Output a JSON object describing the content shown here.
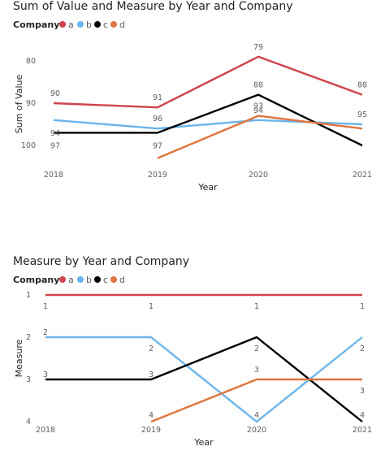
{
  "colors": {
    "a": "#d0424d",
    "b": "#6bb5ec",
    "c": "#000000",
    "d": "#e0743e"
  },
  "chart_data": [
    {
      "type": "line",
      "title": "Sum of Value and Measure by Year and Company",
      "legend_title": "Company",
      "legend_position": "top-left",
      "xlabel": "Year",
      "ylabel": "Sum of Value",
      "y_axis_reversed": true,
      "ylim": [
        75,
        100
      ],
      "yticks": [
        "80",
        "90",
        "100"
      ],
      "categories": [
        "2018",
        "2019",
        "2020",
        "2021"
      ],
      "grid": false,
      "series": [
        {
          "name": "a",
          "values": [
            90,
            91,
            79,
            88
          ],
          "labels": [
            "90",
            "91",
            "79",
            "88"
          ]
        },
        {
          "name": "b",
          "values": [
            94,
            96,
            94,
            95
          ],
          "labels": [
            "94",
            "96",
            "94",
            "95"
          ]
        },
        {
          "name": "c",
          "values": [
            97,
            97,
            88,
            100
          ],
          "labels": [
            "97",
            "97",
            "88",
            ""
          ]
        },
        {
          "name": "d",
          "values": [
            null,
            103,
            93,
            96
          ],
          "labels": [
            "",
            "",
            "93",
            ""
          ]
        }
      ]
    },
    {
      "type": "line",
      "title": "Measure by Year and Company",
      "legend_title": "Company",
      "legend_position": "top-left",
      "xlabel": "Year",
      "ylabel": "Measure",
      "y_axis_reversed": true,
      "ylim": [
        1,
        4
      ],
      "yticks": [
        "1",
        "2",
        "3",
        "4"
      ],
      "categories": [
        "2018",
        "2019",
        "2020",
        "2021"
      ],
      "grid": false,
      "series": [
        {
          "name": "a",
          "values": [
            1,
            1,
            1,
            1
          ],
          "labels": [
            "1",
            "1",
            "1",
            "1"
          ]
        },
        {
          "name": "b",
          "values": [
            2,
            2,
            4,
            2
          ],
          "labels": [
            "2",
            "2",
            "4",
            "2"
          ]
        },
        {
          "name": "c",
          "values": [
            3,
            3,
            2,
            4
          ],
          "labels": [
            "3",
            "3",
            "2",
            "4"
          ]
        },
        {
          "name": "d",
          "values": [
            null,
            4,
            3,
            3
          ],
          "labels": [
            "",
            "4",
            "3",
            "3"
          ]
        }
      ]
    }
  ]
}
